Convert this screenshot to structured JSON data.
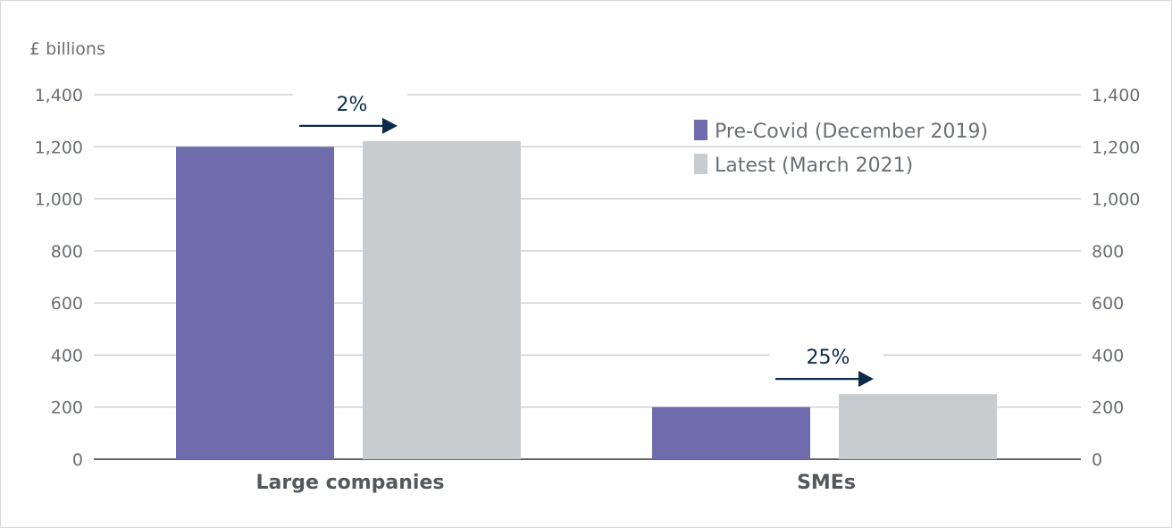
{
  "chart_data": {
    "type": "bar",
    "ylabel": "£ billions",
    "categories": [
      "Large companies",
      "SMEs"
    ],
    "series": [
      {
        "name": "Pre-Covid (December 2019)",
        "values": [
          1200,
          200
        ],
        "color": "#6f6cad"
      },
      {
        "name": "Latest (March 2021)",
        "values": [
          1222,
          250
        ],
        "color": "#c8cccf"
      }
    ],
    "ylim": [
      0,
      1400
    ],
    "yticks": [
      0,
      200,
      400,
      600,
      800,
      1000,
      1200,
      1400
    ],
    "ytick_labels": [
      "0",
      "200",
      "400",
      "600",
      "800",
      "1,000",
      "1,200",
      "1,400"
    ],
    "secondary_y_axis": true,
    "grid": true,
    "legend_position": "top-right",
    "annotations": [
      {
        "category": "Large companies",
        "label": "2%",
        "arrow": "right"
      },
      {
        "category": "SMEs",
        "label": "25%",
        "arrow": "right"
      }
    ],
    "arrow_color": "#0b2a4a",
    "grid_color": "#c8c8c8"
  }
}
